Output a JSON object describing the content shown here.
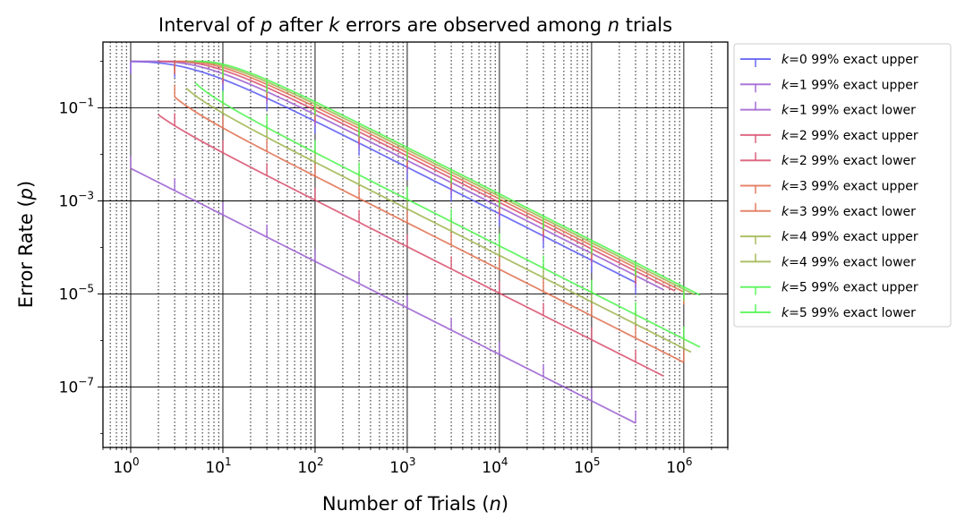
{
  "chart_data": {
    "type": "line",
    "title": "Interval of p after k errors are observed among n trials",
    "title_parts": {
      "a": "Interval of ",
      "p": "p",
      "b": " after ",
      "k": "k",
      "c": " errors are observed among ",
      "n": "n",
      "d": " trials"
    },
    "xlabel": "Number of Trials (n)",
    "xlabel_parts": {
      "a": "Number of Trials (",
      "n": "n",
      "b": ")"
    },
    "ylabel": "Error Rate (p)",
    "ylabel_parts": {
      "a": "Error Rate (",
      "p": "p",
      "b": ")"
    },
    "x_scale": "log",
    "y_scale": "log",
    "xlim": [
      0.5,
      3000000
    ],
    "ylim": [
      5e-09,
      2.6
    ],
    "x_ticks": [
      {
        "value": 1,
        "base": "10",
        "exp": "0"
      },
      {
        "value": 10,
        "base": "10",
        "exp": "1"
      },
      {
        "value": 100,
        "base": "10",
        "exp": "2"
      },
      {
        "value": 1000,
        "base": "10",
        "exp": "3"
      },
      {
        "value": 10000,
        "base": "10",
        "exp": "4"
      },
      {
        "value": 100000,
        "base": "10",
        "exp": "5"
      },
      {
        "value": 1000000,
        "base": "10",
        "exp": "6"
      }
    ],
    "y_ticks": [
      {
        "value": 0.1,
        "base": "10",
        "exp": "−1"
      },
      {
        "value": 0.001,
        "base": "10",
        "exp": "−3"
      },
      {
        "value": 1e-05,
        "base": "10",
        "exp": "−5"
      },
      {
        "value": 1e-07,
        "base": "10",
        "exp": "−7"
      }
    ],
    "grid": "major solid, minor dotted",
    "legend_position": "outside right, top",
    "series": [
      {
        "name": "k=0 99% exact upper",
        "k": "k",
        "label_rest": "=0 99% exact upper",
        "color": "#5a5af5",
        "n_start": 1,
        "n_end": 300000,
        "k_val": 0,
        "bound": "upper"
      },
      {
        "name": "k=1 99% exact upper",
        "k": "k",
        "label_rest": "=1 99% exact upper",
        "color": "#9b5fd0",
        "n_start": 1,
        "n_end": 600000,
        "k_val": 1,
        "bound": "upper"
      },
      {
        "name": "k=1 99% exact lower",
        "k": "k",
        "label_rest": "=1 99% exact lower",
        "color": "#9b5fd0",
        "n_start": 1,
        "n_end": 300000,
        "k_val": 1,
        "bound": "lower"
      },
      {
        "name": "k=2 99% exact upper",
        "k": "k",
        "label_rest": "=2 99% exact upper",
        "color": "#d9506f",
        "n_start": 2,
        "n_end": 800000,
        "k_val": 2,
        "bound": "upper"
      },
      {
        "name": "k=2 99% exact lower",
        "k": "k",
        "label_rest": "=2 99% exact lower",
        "color": "#d9506f",
        "n_start": 2,
        "n_end": 600000,
        "k_val": 2,
        "bound": "lower"
      },
      {
        "name": "k=3 99% exact upper",
        "k": "k",
        "label_rest": "=3 99% exact upper",
        "color": "#e07050",
        "n_start": 3,
        "n_end": 1000000,
        "k_val": 3,
        "bound": "upper"
      },
      {
        "name": "k=3 99% exact lower",
        "k": "k",
        "label_rest": "=3 99% exact lower",
        "color": "#e07050",
        "n_start": 3,
        "n_end": 1000000,
        "k_val": 3,
        "bound": "lower"
      },
      {
        "name": "k=4 99% exact upper",
        "k": "k",
        "label_rest": "=4 99% exact upper",
        "color": "#9db54e",
        "n_start": 4,
        "n_end": 1300000,
        "k_val": 4,
        "bound": "upper"
      },
      {
        "name": "k=4 99% exact lower",
        "k": "k",
        "label_rest": "=4 99% exact lower",
        "color": "#9db54e",
        "n_start": 4,
        "n_end": 1200000,
        "k_val": 4,
        "bound": "lower"
      },
      {
        "name": "k=5 99% exact upper",
        "k": "k",
        "label_rest": "=5 99% exact upper",
        "color": "#4cf54c",
        "n_start": 5,
        "n_end": 1500000,
        "k_val": 5,
        "bound": "upper"
      },
      {
        "name": "k=5 99% exact lower",
        "k": "k",
        "label_rest": "=5 99% exact lower",
        "color": "#4cf54c",
        "n_start": 5,
        "n_end": 1500000,
        "k_val": 5,
        "bound": "lower"
      }
    ]
  }
}
